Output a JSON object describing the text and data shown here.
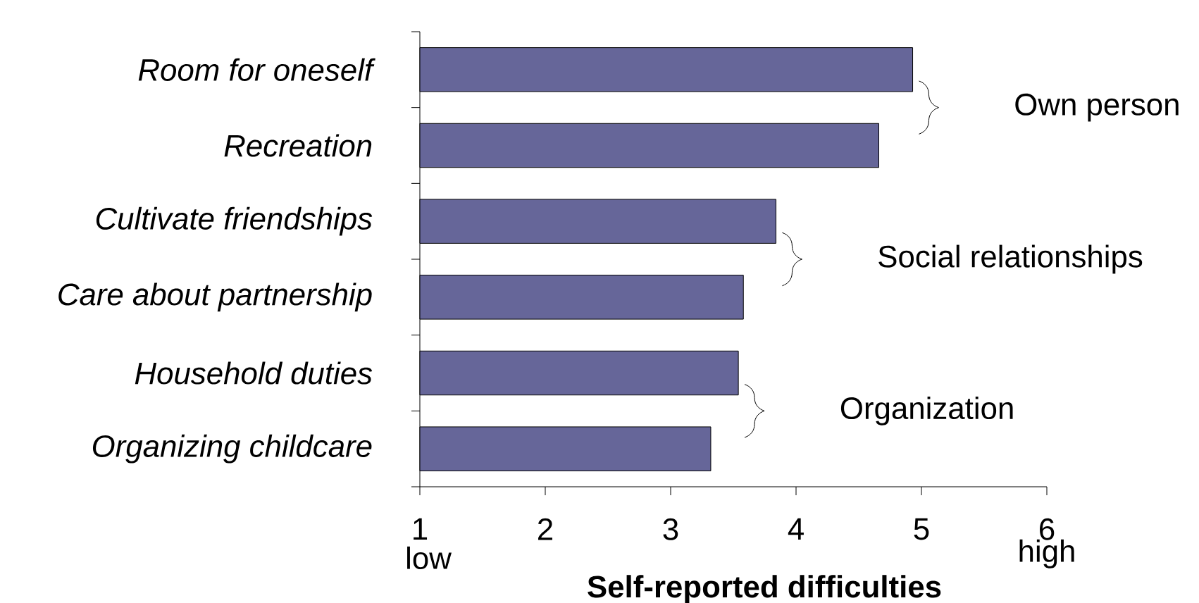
{
  "chart_data": {
    "type": "bar",
    "orientation": "horizontal",
    "xlabel": "Self-reported difficulties",
    "categories": [
      "Room for oneself",
      "Recreation",
      "Cultivate friendships",
      "Care about partnership",
      "Household duties",
      "Organizing childcare"
    ],
    "values": [
      4.93,
      4.66,
      3.84,
      3.58,
      3.54,
      3.32
    ],
    "color": "#666699",
    "xlim": [
      1,
      6
    ],
    "xticks": [
      1,
      2,
      3,
      4,
      5,
      6
    ],
    "annotations": [
      "low",
      "high",
      "Own person",
      "Social relationships",
      "Organization"
    ]
  }
}
